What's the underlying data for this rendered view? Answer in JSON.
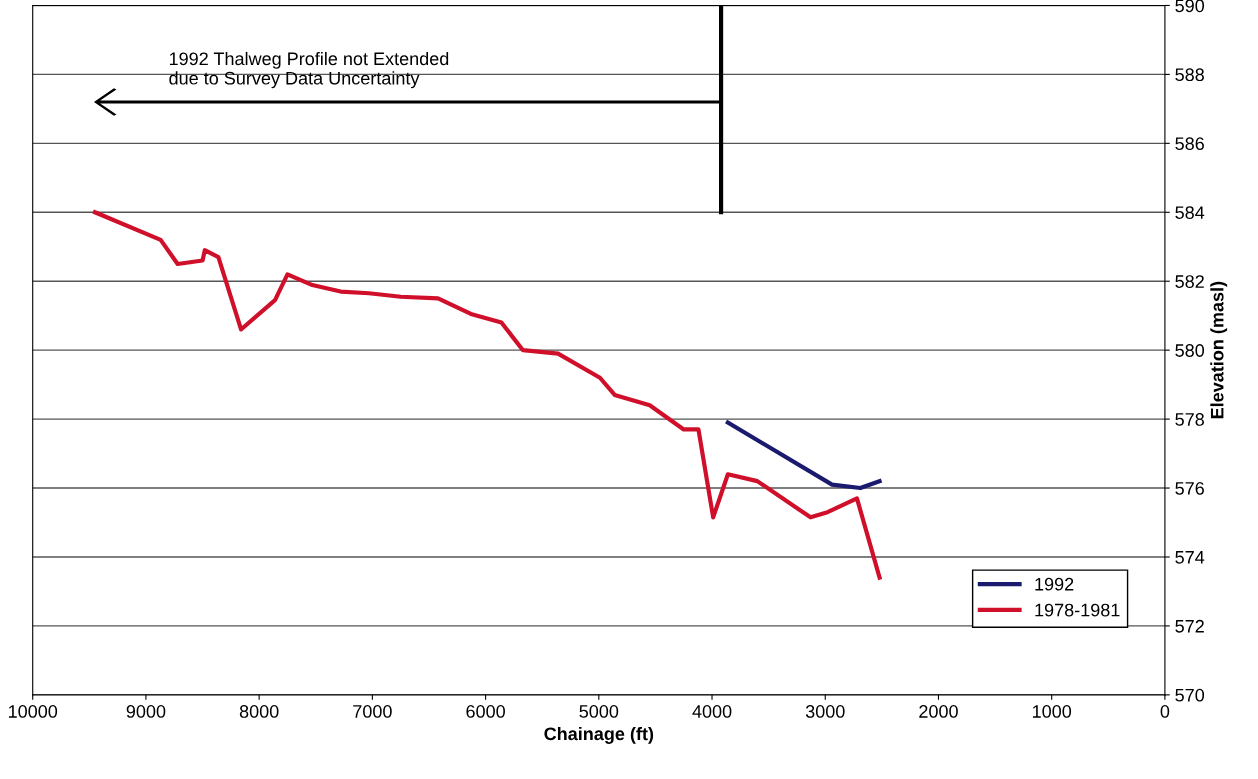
{
  "chart_data": {
    "type": "line",
    "xlabel": "Chainage (ft)",
    "ylabel": "Elevation (masl)",
    "xlim": [
      10000,
      0
    ],
    "xticks": [
      10000,
      9000,
      8000,
      7000,
      6000,
      5000,
      4000,
      3000,
      2000,
      1000,
      0
    ],
    "ylim": [
      570,
      590
    ],
    "yticks": [
      570,
      572,
      574,
      576,
      578,
      580,
      582,
      584,
      586,
      588,
      590
    ],
    "grid": "y",
    "legend": "bottom right",
    "line_style": "solid",
    "marker": "none",
    "annotations": [
      "1992 Thalweg Profile not Extended\ndue to Survey Data Uncertainty"
    ],
    "series": [
      {
        "name": "1992",
        "color": "#1a1a6e",
        "x": [
          3860,
          2940,
          2690,
          2520
        ],
        "values": [
          577.9,
          576.1,
          576.0,
          576.2
        ]
      },
      {
        "name": "1978-1981",
        "color": "#d0102a",
        "x": [
          9450,
          8870,
          8720,
          8500,
          8480,
          8360,
          8160,
          7860,
          7750,
          7540,
          7280,
          7030,
          6750,
          6420,
          6130,
          5860,
          5670,
          5360,
          4990,
          4860,
          4550,
          4250,
          4120,
          3990,
          3860,
          3600,
          3130,
          2980,
          2720,
          2520
        ],
        "values": [
          584.0,
          583.2,
          582.5,
          582.6,
          582.9,
          582.7,
          580.6,
          581.45,
          582.2,
          581.9,
          581.7,
          581.65,
          581.55,
          581.5,
          581.05,
          580.8,
          580.0,
          579.9,
          579.2,
          578.7,
          578.4,
          577.7,
          577.7,
          575.15,
          576.4,
          576.2,
          575.15,
          575.3,
          575.7,
          573.4
        ]
      }
    ]
  }
}
